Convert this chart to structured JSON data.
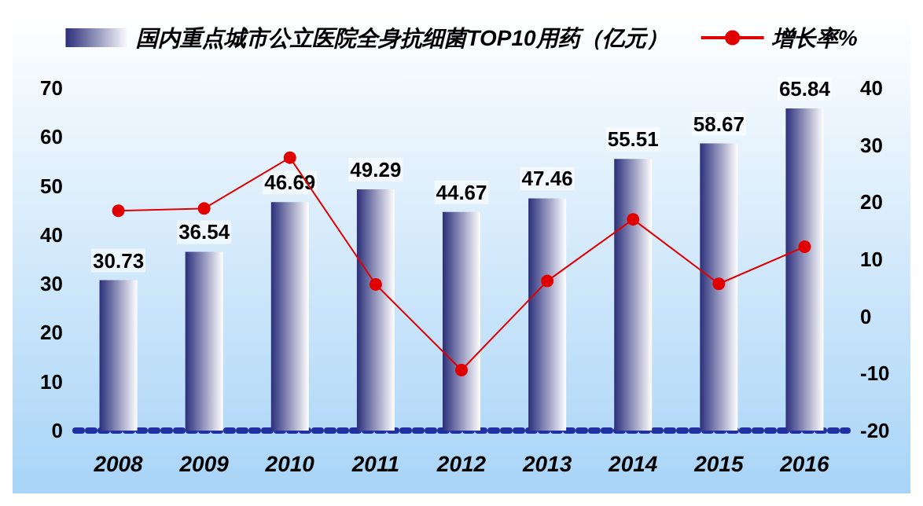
{
  "chart_data": {
    "type": "bar",
    "categories": [
      "2008",
      "2009",
      "2010",
      "2011",
      "2012",
      "2013",
      "2014",
      "2015",
      "2016"
    ],
    "series": [
      {
        "name": "国内重点城市公立医院全身抗细菌TOP10用药（亿元）",
        "color": "#2b2f7a",
        "values": [
          30.73,
          36.54,
          46.69,
          49.29,
          44.67,
          47.46,
          55.51,
          58.67,
          65.84
        ],
        "data_labels": true
      },
      {
        "name": "增长率%",
        "type": "line",
        "axis": "y2",
        "color": "#e00000",
        "marker": "circle",
        "values": [
          18.5,
          18.9,
          27.8,
          5.6,
          -9.4,
          6.2,
          17.0,
          5.7,
          12.2
        ]
      }
    ],
    "ylim": [
      0,
      70
    ],
    "yticks": [
      0,
      10,
      20,
      30,
      40,
      50,
      60,
      70
    ],
    "y2lim": [
      -20,
      40
    ],
    "y2ticks": [
      -20,
      -10,
      0,
      10,
      20,
      30,
      40
    ],
    "legend": "top"
  }
}
